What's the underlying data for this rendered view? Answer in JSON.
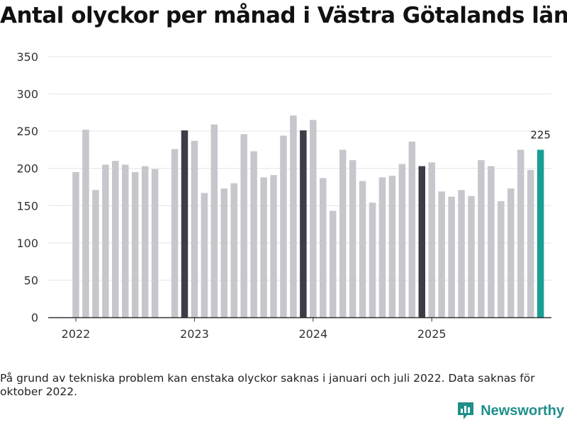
{
  "title": "Antal olyckor per månad i Västra Götalands län",
  "note": "På grund av tekniska problem kan enstaka olyckor saknas i januari och juli 2022. Data saknas för oktober 2022.",
  "brand": {
    "name": "Newsworthy",
    "color": "#1f8f8a",
    "icon": "bar-chart-logo-icon"
  },
  "colors": {
    "normal": "#c7c6cd",
    "december": "#3d3c48",
    "latest": "#1a9e94",
    "grid": "#e3e3e3",
    "axis": "#333333"
  },
  "chart_data": {
    "type": "bar",
    "title": "Antal olyckor per månad i Västra Götalands län",
    "xlabel": "",
    "ylabel": "",
    "ylim": [
      0,
      350
    ],
    "yticks": [
      0,
      50,
      100,
      150,
      200,
      250,
      300,
      350
    ],
    "xticks": [
      {
        "label": "2022",
        "index": 0
      },
      {
        "label": "2023",
        "index": 12
      },
      {
        "label": "2024",
        "index": 24
      },
      {
        "label": "2025",
        "index": 36
      }
    ],
    "categories": [
      "2022-01",
      "2022-02",
      "2022-03",
      "2022-04",
      "2022-05",
      "2022-06",
      "2022-07",
      "2022-08",
      "2022-09",
      "2022-10",
      "2022-11",
      "2022-12",
      "2023-01",
      "2023-02",
      "2023-03",
      "2023-04",
      "2023-05",
      "2023-06",
      "2023-07",
      "2023-08",
      "2023-09",
      "2023-10",
      "2023-11",
      "2023-12",
      "2024-01",
      "2024-02",
      "2024-03",
      "2024-04",
      "2024-05",
      "2024-06",
      "2024-07",
      "2024-08",
      "2024-09",
      "2024-10",
      "2024-11",
      "2024-12",
      "2025-01",
      "2025-02",
      "2025-03",
      "2025-04",
      "2025-05",
      "2025-06",
      "2025-07",
      "2025-08",
      "2025-09",
      "2025-10",
      "2025-11",
      "2025-12"
    ],
    "values": [
      195,
      252,
      171,
      205,
      210,
      205,
      195,
      203,
      199,
      null,
      226,
      251,
      237,
      167,
      259,
      173,
      180,
      246,
      223,
      188,
      191,
      244,
      271,
      251,
      265,
      187,
      143,
      225,
      211,
      183,
      154,
      188,
      190,
      206,
      236,
      203,
      208,
      169,
      162,
      171,
      163,
      211,
      203,
      156,
      173,
      225,
      198,
      225
    ],
    "highlight": {
      "december": [
        11,
        23,
        35
      ],
      "latest": 47
    },
    "data_labels": [
      {
        "index": 47,
        "text": "225"
      }
    ]
  }
}
